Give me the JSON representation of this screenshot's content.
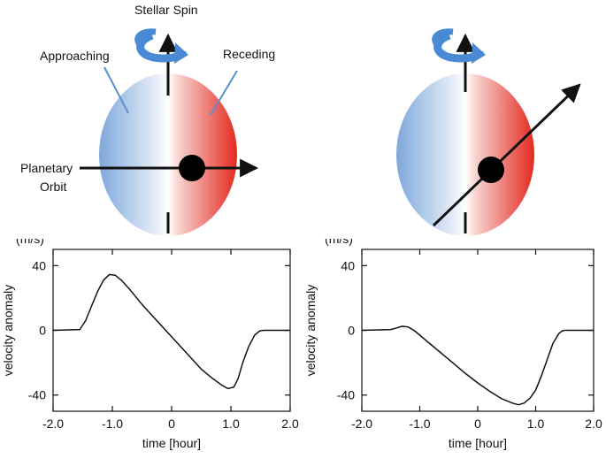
{
  "diagram": {
    "left": {
      "stellar_spin": "Stellar Spin",
      "approaching": "Approaching",
      "receding": "Receding",
      "planetary": "Planetary",
      "orbit": "Orbit"
    }
  },
  "colors": {
    "approaching": "#7fa8dc",
    "receding": "#e8322a",
    "spin_arrow": "#4a8ad4",
    "planet": "#000000"
  },
  "chart_data": [
    {
      "type": "line",
      "ylabel": "velocity anomaly",
      "yunit": "(m/s)",
      "xlabel": "time [hour]",
      "xlim": [
        -2.0,
        2.0
      ],
      "ylim": [
        -50,
        50
      ],
      "xticks": [
        "-2.0",
        "-1.0",
        "0",
        "1.0",
        "2.0"
      ],
      "yticks": [
        "40",
        "0",
        "-40"
      ],
      "series": [
        {
          "x": [
            -2.0,
            -1.55,
            -1.45,
            -1.35,
            -1.25,
            -1.15,
            -1.05,
            -0.95,
            -0.85,
            -0.7,
            -0.5,
            -0.3,
            -0.1,
            0.1,
            0.3,
            0.5,
            0.7,
            0.85,
            0.95,
            1.05,
            1.12,
            1.2,
            1.3,
            1.4,
            1.48,
            1.55,
            2.0
          ],
          "y": [
            0,
            0.5,
            6,
            15,
            24,
            31,
            34.5,
            34,
            31,
            25,
            16,
            8,
            0,
            -8,
            -16,
            -24,
            -30,
            -34,
            -36,
            -35,
            -30,
            -20,
            -10,
            -3,
            -0.5,
            0,
            0
          ]
        }
      ]
    },
    {
      "type": "line",
      "ylabel": "velocity anomaly",
      "yunit": "(m/s)",
      "xlabel": "time [hour]",
      "xlim": [
        -2.0,
        2.0
      ],
      "ylim": [
        -50,
        50
      ],
      "xticks": [
        "-2.0",
        "-1.0",
        "0",
        "1.0",
        "2.0"
      ],
      "yticks": [
        "40",
        "0",
        "-40"
      ],
      "series": [
        {
          "x": [
            -2.0,
            -1.5,
            -1.4,
            -1.3,
            -1.2,
            -1.1,
            -1.0,
            -0.8,
            -0.6,
            -0.4,
            -0.2,
            0.0,
            0.2,
            0.4,
            0.6,
            0.7,
            0.8,
            0.9,
            1.0,
            1.1,
            1.2,
            1.3,
            1.4,
            1.45,
            1.5,
            2.0
          ],
          "y": [
            0,
            0.5,
            1.5,
            2.5,
            2,
            0,
            -3,
            -9,
            -15,
            -21,
            -27,
            -32.5,
            -37.5,
            -42,
            -45,
            -46,
            -45,
            -42,
            -37,
            -28,
            -18,
            -8,
            -2,
            -0.5,
            0,
            0
          ]
        }
      ]
    }
  ]
}
